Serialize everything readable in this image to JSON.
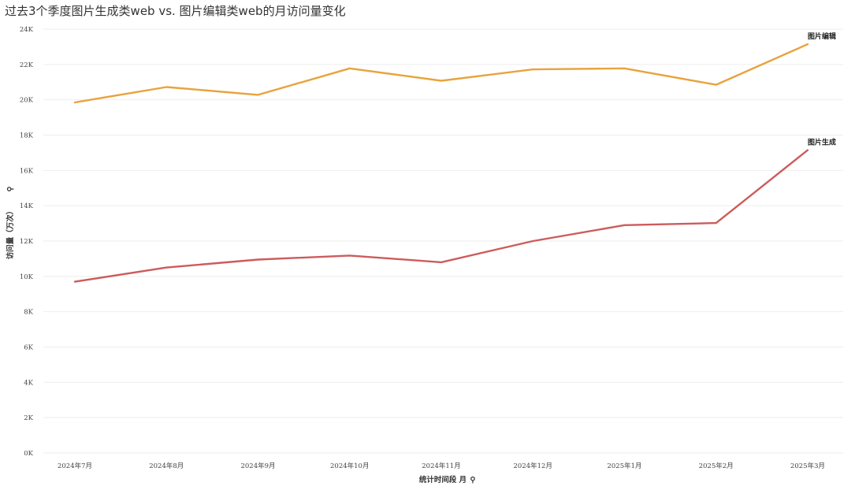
{
  "chart_data": {
    "type": "line",
    "title": "过去3个季度图片生成类web vs. 图片编辑类web的月访问量变化",
    "xlabel": "统计时间段 月",
    "ylabel": "访问量（万次）",
    "categories": [
      "2024年7月",
      "2024年8月",
      "2024年9月",
      "2024年10月",
      "2024年11月",
      "2024年12月",
      "2025年1月",
      "2025年2月",
      "2025年3月"
    ],
    "ylim": [
      0,
      24000
    ],
    "yticks": [
      0,
      2000,
      4000,
      6000,
      8000,
      10000,
      12000,
      14000,
      16000,
      18000,
      20000,
      22000,
      24000
    ],
    "ytick_labels": [
      "0K",
      "2K",
      "4K",
      "6K",
      "8K",
      "10K",
      "12K",
      "14K",
      "16K",
      "18K",
      "20K",
      "22K",
      "24K"
    ],
    "grid": true,
    "series": [
      {
        "name": "图片编辑",
        "color": "#E8A33D",
        "values": [
          19850,
          20720,
          20280,
          21780,
          21080,
          21720,
          21780,
          20850,
          23150
        ]
      },
      {
        "name": "图片生成",
        "color": "#CD5C5C",
        "values": [
          9700,
          10500,
          10950,
          11180,
          10800,
          12000,
          12900,
          13020,
          17150
        ]
      }
    ]
  }
}
